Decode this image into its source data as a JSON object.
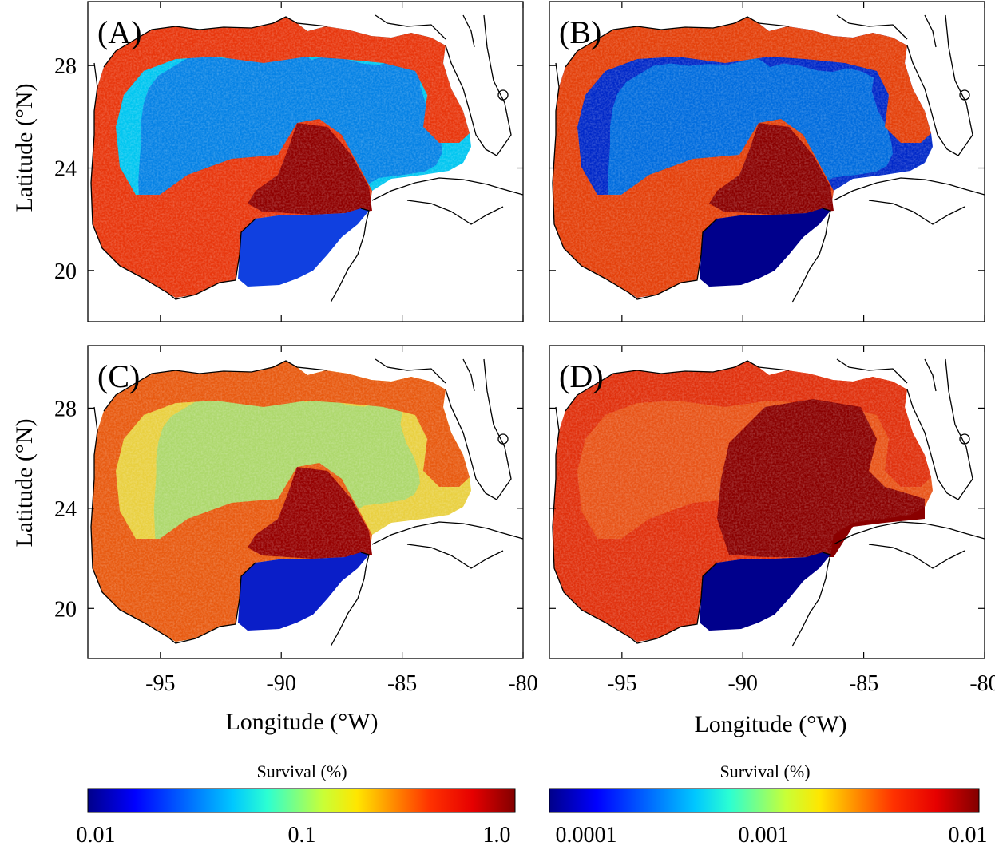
{
  "panels": [
    {
      "label": "(A)",
      "scale": "1"
    },
    {
      "label": "(B)",
      "scale": "2"
    },
    {
      "label": "(C)",
      "scale": "1"
    },
    {
      "label": "(D)",
      "scale": "2"
    }
  ],
  "axes": {
    "ylabel": "Latitude (°N)",
    "xlabel": "Longitude (°W)",
    "lat_ticks": [
      28,
      24,
      20
    ],
    "lon_ticks": [
      -95,
      -90,
      -85,
      -80
    ],
    "lon_range": [
      -98,
      -80
    ],
    "lat_range": [
      18,
      30.5
    ]
  },
  "colorbars": [
    {
      "title": "Survival (%)",
      "tick_labels": [
        "0.01",
        "0.1",
        "1.0"
      ],
      "range": [
        0.01,
        1.0
      ],
      "log": true
    },
    {
      "title": "Survival (%)",
      "tick_labels": [
        "0.0001",
        "0.001",
        "0.01"
      ],
      "range": [
        0.0001,
        0.01
      ],
      "log": true
    }
  ],
  "colormap": [
    "#000080",
    "#0000ff",
    "#00aaff",
    "#00ffff",
    "#aaff55",
    "#ffff00",
    "#ffaa00",
    "#ff2200",
    "#aa0000",
    "#800000"
  ]
}
